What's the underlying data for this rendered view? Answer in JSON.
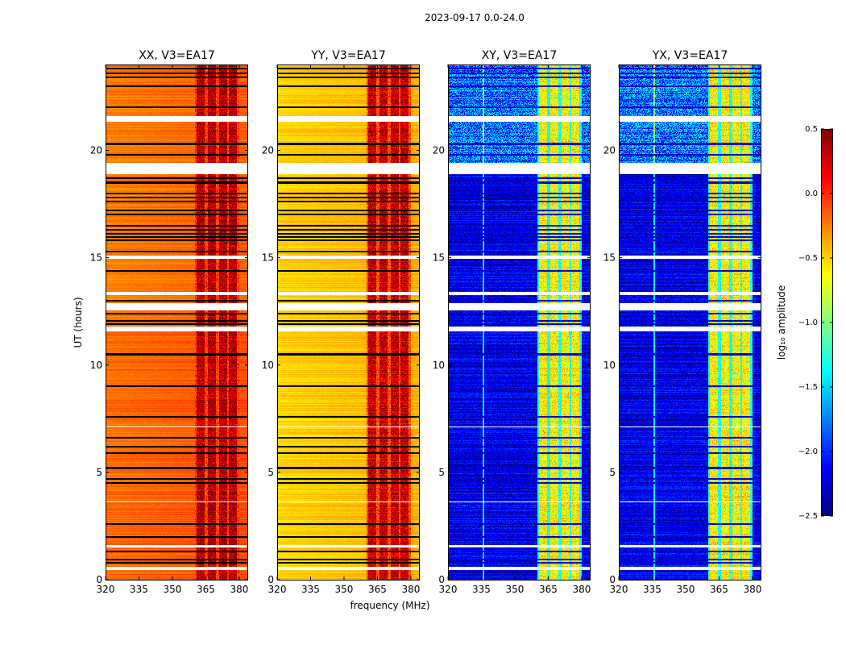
{
  "chart_data": {
    "type": "heatmap",
    "title": "2023-09-17 0.0-24.0",
    "xlabel": "frequency (MHz)",
    "ylabel": "UT (hours)",
    "xlim": [
      320,
      384
    ],
    "ylim": [
      0,
      24
    ],
    "xticks": [
      "320",
      "335",
      "350",
      "365",
      "380"
    ],
    "yticks": [
      "0",
      "5",
      "10",
      "15",
      "20"
    ],
    "panels": [
      {
        "title": "XX, V3=EA17",
        "baseline": -0.25,
        "band_level": 0.35,
        "gap_level": -0.05,
        "black_lines": true
      },
      {
        "title": "YY, V3=EA17",
        "baseline": -0.5,
        "band_level": 0.3,
        "gap_level": -0.1,
        "black_lines": true
      },
      {
        "title": "XY, V3=EA17",
        "baseline": -2.2,
        "band_level": -0.6,
        "gap_level": -1.3,
        "black_lines": false
      },
      {
        "title": "YX, V3=EA17",
        "baseline": -2.2,
        "band_level": -0.6,
        "gap_level": -1.3,
        "black_lines": false
      }
    ],
    "signal_subbands_mhz": [
      [
        361,
        364.5
      ],
      [
        366,
        369.5
      ],
      [
        371,
        374.5
      ],
      [
        375.5,
        379
      ]
    ],
    "flagged_hours": [
      [
        0.45,
        0.6
      ],
      [
        1.5,
        1.6
      ],
      [
        11.55,
        11.8
      ],
      [
        12.55,
        12.9
      ],
      [
        13.25,
        13.4
      ],
      [
        14.95,
        15.1
      ],
      [
        18.9,
        19.4
      ],
      [
        21.35,
        21.6
      ],
      [
        3.6,
        3.65
      ],
      [
        7.1,
        7.15
      ]
    ],
    "dark_row_hours": [
      0.8,
      0.95,
      1.3,
      2.0,
      2.6,
      4.5,
      4.7,
      5.2,
      5.9,
      6.2,
      6.6,
      7.6,
      9.0,
      10.5,
      11.9,
      12.05,
      12.4,
      13.0,
      14.4,
      15.3,
      15.8,
      15.95,
      16.1,
      16.3,
      16.5,
      17.0,
      17.2,
      17.6,
      17.8,
      18.0,
      18.5,
      18.7,
      19.8,
      20.3,
      22.0,
      23.0,
      23.4,
      23.6,
      23.8
    ],
    "colorbar": {
      "label": "log₁₀ amplitude",
      "range": [
        -2.5,
        0.5
      ],
      "ticks": [
        "0.5",
        "0.0",
        "−0.5",
        "−1.0",
        "−1.5",
        "−2.0",
        "−2.5"
      ],
      "colormap": "jet"
    }
  }
}
